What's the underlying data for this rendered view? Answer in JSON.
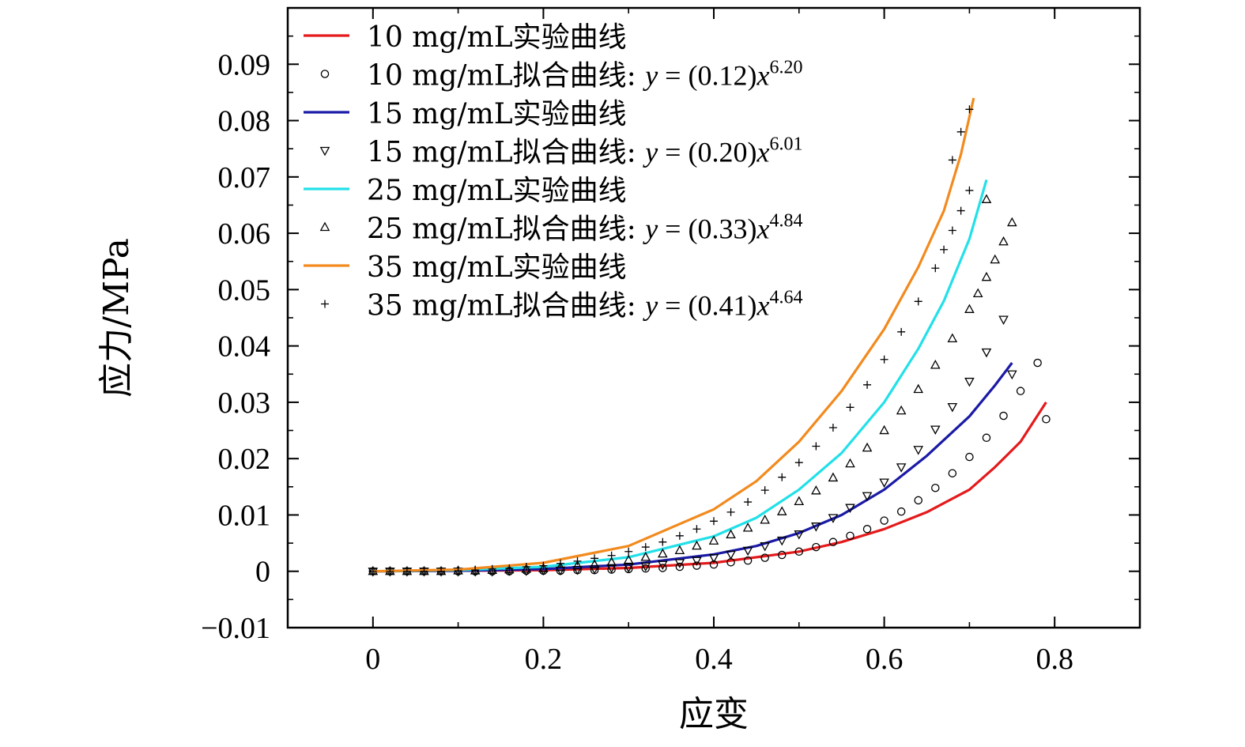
{
  "chart_data": {
    "type": "line",
    "xlabel": "应变",
    "ylabel": "应力/MPa",
    "xlim": [
      -0.1,
      0.9
    ],
    "ylim": [
      -0.01,
      0.1
    ],
    "xticks": [
      "0",
      "0.2",
      "0.4",
      "0.6",
      "0.8"
    ],
    "xtick_values": [
      0,
      0.2,
      0.4,
      0.6,
      0.8
    ],
    "yticks": [
      "−0.01",
      "0",
      "0.01",
      "0.02",
      "0.03",
      "0.04",
      "0.05",
      "0.06",
      "0.07",
      "0.08",
      "0.09"
    ],
    "ytick_values": [
      -0.01,
      0,
      0.01,
      0.02,
      0.03,
      0.04,
      0.05,
      0.06,
      0.07,
      0.08,
      0.09
    ],
    "legend_position": "top-left",
    "grid": false,
    "series": [
      {
        "name": "10 mg/mL实验曲线",
        "kind": "line",
        "color": "#e41a1c",
        "points": [
          [
            0,
            0
          ],
          [
            0.1,
            0.0001
          ],
          [
            0.2,
            0.0002
          ],
          [
            0.3,
            0.0006
          ],
          [
            0.4,
            0.0015
          ],
          [
            0.5,
            0.0035
          ],
          [
            0.55,
            0.0052
          ],
          [
            0.6,
            0.0075
          ],
          [
            0.65,
            0.0105
          ],
          [
            0.7,
            0.0145
          ],
          [
            0.73,
            0.0185
          ],
          [
            0.76,
            0.023
          ],
          [
            0.79,
            0.03
          ]
        ]
      },
      {
        "name": "10 mg/mL拟合曲线: ",
        "equation": {
          "coef": "0.12",
          "exp": "6.20"
        },
        "kind": "marker",
        "marker": "circle",
        "color": "#000000",
        "points": [
          [
            0,
            0
          ],
          [
            0.02,
            0
          ],
          [
            0.04,
            0
          ],
          [
            0.06,
            0
          ],
          [
            0.08,
            0
          ],
          [
            0.1,
            0
          ],
          [
            0.12,
            0
          ],
          [
            0.14,
            0
          ],
          [
            0.16,
            0
          ],
          [
            0.18,
            0.0001
          ],
          [
            0.2,
            0.0001
          ],
          [
            0.22,
            0.0001
          ],
          [
            0.24,
            0.0002
          ],
          [
            0.26,
            0.0002
          ],
          [
            0.28,
            0.0003
          ],
          [
            0.3,
            0.0004
          ],
          [
            0.32,
            0.0005
          ],
          [
            0.34,
            0.0006
          ],
          [
            0.36,
            0.0008
          ],
          [
            0.38,
            0.001
          ],
          [
            0.4,
            0.0012
          ],
          [
            0.42,
            0.0016
          ],
          [
            0.44,
            0.0019
          ],
          [
            0.46,
            0.0024
          ],
          [
            0.48,
            0.0029
          ],
          [
            0.5,
            0.0035
          ],
          [
            0.52,
            0.0043
          ],
          [
            0.54,
            0.0052
          ],
          [
            0.56,
            0.0063
          ],
          [
            0.58,
            0.0075
          ],
          [
            0.6,
            0.009
          ],
          [
            0.62,
            0.0106
          ],
          [
            0.64,
            0.0126
          ],
          [
            0.66,
            0.0148
          ],
          [
            0.68,
            0.0174
          ],
          [
            0.7,
            0.0203
          ],
          [
            0.72,
            0.0237
          ],
          [
            0.74,
            0.0276
          ],
          [
            0.76,
            0.032
          ],
          [
            0.78,
            0.037
          ],
          [
            0.79,
            0.027
          ]
        ]
      },
      {
        "name": "15 mg/mL实验曲线",
        "kind": "line",
        "color": "#1a1aa6",
        "points": [
          [
            0,
            0
          ],
          [
            0.1,
            0.0001
          ],
          [
            0.2,
            0.0004
          ],
          [
            0.3,
            0.0012
          ],
          [
            0.4,
            0.003
          ],
          [
            0.45,
            0.0045
          ],
          [
            0.5,
            0.0068
          ],
          [
            0.55,
            0.01
          ],
          [
            0.6,
            0.0145
          ],
          [
            0.65,
            0.0205
          ],
          [
            0.7,
            0.0275
          ],
          [
            0.73,
            0.033
          ],
          [
            0.75,
            0.037
          ]
        ]
      },
      {
        "name": "15 mg/mL拟合曲线: ",
        "equation": {
          "coef": "0.20",
          "exp": "6.01"
        },
        "kind": "marker",
        "marker": "triangle-down",
        "color": "#000000",
        "points": [
          [
            0,
            0
          ],
          [
            0.02,
            0
          ],
          [
            0.04,
            0
          ],
          [
            0.06,
            0
          ],
          [
            0.08,
            0
          ],
          [
            0.1,
            0
          ],
          [
            0.12,
            0
          ],
          [
            0.14,
            0
          ],
          [
            0.16,
            0.0001
          ],
          [
            0.18,
            0.0001
          ],
          [
            0.2,
            0.0002
          ],
          [
            0.22,
            0.0002
          ],
          [
            0.24,
            0.0003
          ],
          [
            0.26,
            0.0004
          ],
          [
            0.28,
            0.0006
          ],
          [
            0.3,
            0.0007
          ],
          [
            0.32,
            0.0009
          ],
          [
            0.34,
            0.0012
          ],
          [
            0.36,
            0.0015
          ],
          [
            0.38,
            0.0019
          ],
          [
            0.4,
            0.0024
          ],
          [
            0.42,
            0.003
          ],
          [
            0.44,
            0.0037
          ],
          [
            0.46,
            0.0045
          ],
          [
            0.48,
            0.0055
          ],
          [
            0.5,
            0.0066
          ],
          [
            0.52,
            0.008
          ],
          [
            0.54,
            0.0095
          ],
          [
            0.56,
            0.0113
          ],
          [
            0.58,
            0.0134
          ],
          [
            0.6,
            0.0158
          ],
          [
            0.62,
            0.0185
          ],
          [
            0.64,
            0.0216
          ],
          [
            0.66,
            0.0252
          ],
          [
            0.68,
            0.0292
          ],
          [
            0.7,
            0.0337
          ],
          [
            0.72,
            0.0389
          ],
          [
            0.74,
            0.0447
          ],
          [
            0.75,
            0.035
          ]
        ]
      },
      {
        "name": "25 mg/mL实验曲线",
        "kind": "line",
        "color": "#22e0e8",
        "points": [
          [
            0,
            0
          ],
          [
            0.1,
            0.0002
          ],
          [
            0.2,
            0.0008
          ],
          [
            0.3,
            0.0025
          ],
          [
            0.4,
            0.0062
          ],
          [
            0.45,
            0.0095
          ],
          [
            0.5,
            0.0145
          ],
          [
            0.55,
            0.021
          ],
          [
            0.6,
            0.03
          ],
          [
            0.64,
            0.0395
          ],
          [
            0.67,
            0.048
          ],
          [
            0.7,
            0.059
          ],
          [
            0.72,
            0.0695
          ]
        ]
      },
      {
        "name": "25 mg/mL拟合曲线: ",
        "equation": {
          "coef": "0.33",
          "exp": "4.84"
        },
        "kind": "marker",
        "marker": "triangle-up",
        "color": "#000000",
        "points": [
          [
            0,
            0
          ],
          [
            0.02,
            0
          ],
          [
            0.04,
            0
          ],
          [
            0.06,
            0
          ],
          [
            0.08,
            0
          ],
          [
            0.1,
            0.0001
          ],
          [
            0.12,
            0.0001
          ],
          [
            0.14,
            0.0002
          ],
          [
            0.16,
            0.0003
          ],
          [
            0.18,
            0.0004
          ],
          [
            0.2,
            0.0005
          ],
          [
            0.22,
            0.0007
          ],
          [
            0.24,
            0.001
          ],
          [
            0.26,
            0.0012
          ],
          [
            0.28,
            0.0016
          ],
          [
            0.3,
            0.002
          ],
          [
            0.32,
            0.0025
          ],
          [
            0.34,
            0.0031
          ],
          [
            0.36,
            0.0037
          ],
          [
            0.38,
            0.0045
          ],
          [
            0.4,
            0.0054
          ],
          [
            0.42,
            0.0065
          ],
          [
            0.44,
            0.0077
          ],
          [
            0.46,
            0.0091
          ],
          [
            0.48,
            0.0106
          ],
          [
            0.5,
            0.0124
          ],
          [
            0.52,
            0.0143
          ],
          [
            0.54,
            0.0166
          ],
          [
            0.56,
            0.0191
          ],
          [
            0.58,
            0.0219
          ],
          [
            0.6,
            0.025
          ],
          [
            0.62,
            0.0285
          ],
          [
            0.64,
            0.0323
          ],
          [
            0.66,
            0.0366
          ],
          [
            0.68,
            0.0413
          ],
          [
            0.7,
            0.0465
          ],
          [
            0.71,
            0.0493
          ],
          [
            0.72,
            0.0522
          ],
          [
            0.73,
            0.0553
          ],
          [
            0.74,
            0.0585
          ],
          [
            0.75,
            0.0619
          ],
          [
            0.72,
            0.066
          ]
        ]
      },
      {
        "name": "35 mg/mL实验曲线",
        "kind": "line",
        "color": "#f28a1e",
        "points": [
          [
            0,
            0
          ],
          [
            0.1,
            0.0003
          ],
          [
            0.2,
            0.0015
          ],
          [
            0.3,
            0.0045
          ],
          [
            0.4,
            0.011
          ],
          [
            0.45,
            0.016
          ],
          [
            0.5,
            0.023
          ],
          [
            0.55,
            0.032
          ],
          [
            0.6,
            0.043
          ],
          [
            0.64,
            0.054
          ],
          [
            0.67,
            0.064
          ],
          [
            0.69,
            0.074
          ],
          [
            0.705,
            0.084
          ]
        ]
      },
      {
        "name": "35 mg/mL拟合曲线: ",
        "equation": {
          "coef": "0.41",
          "exp": "4.64"
        },
        "kind": "marker",
        "marker": "plus",
        "color": "#000000",
        "points": [
          [
            0,
            0
          ],
          [
            0.02,
            0
          ],
          [
            0.04,
            0
          ],
          [
            0.06,
            0
          ],
          [
            0.08,
            0
          ],
          [
            0.1,
            0.0001
          ],
          [
            0.12,
            0.0002
          ],
          [
            0.14,
            0.0004
          ],
          [
            0.16,
            0.0005
          ],
          [
            0.18,
            0.0008
          ],
          [
            0.2,
            0.001
          ],
          [
            0.22,
            0.0014
          ],
          [
            0.24,
            0.0018
          ],
          [
            0.26,
            0.0023
          ],
          [
            0.28,
            0.0028
          ],
          [
            0.3,
            0.0035
          ],
          [
            0.32,
            0.0043
          ],
          [
            0.34,
            0.0052
          ],
          [
            0.36,
            0.0063
          ],
          [
            0.38,
            0.0075
          ],
          [
            0.4,
            0.0089
          ],
          [
            0.42,
            0.0105
          ],
          [
            0.44,
            0.0123
          ],
          [
            0.46,
            0.0144
          ],
          [
            0.48,
            0.0167
          ],
          [
            0.5,
            0.0193
          ],
          [
            0.52,
            0.0222
          ],
          [
            0.54,
            0.0255
          ],
          [
            0.56,
            0.0291
          ],
          [
            0.58,
            0.0331
          ],
          [
            0.6,
            0.0376
          ],
          [
            0.62,
            0.0425
          ],
          [
            0.64,
            0.0479
          ],
          [
            0.66,
            0.0538
          ],
          [
            0.67,
            0.0571
          ],
          [
            0.68,
            0.0605
          ],
          [
            0.69,
            0.064
          ],
          [
            0.7,
            0.0676
          ],
          [
            0.68,
            0.073
          ],
          [
            0.69,
            0.078
          ],
          [
            0.7,
            0.082
          ]
        ]
      }
    ]
  }
}
